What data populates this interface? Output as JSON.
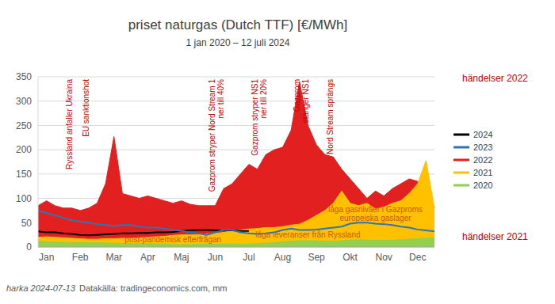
{
  "chart_data": {
    "type": "area",
    "title": "priset naturgas (Dutch TTF) [€/MWh]",
    "subtitle": "1 jan 2020 – 12 juli 2024",
    "categories": [
      null,
      "Jan",
      null,
      null,
      null,
      "Feb",
      null,
      null,
      null,
      "Mar",
      null,
      null,
      null,
      "Apr",
      null,
      null,
      null,
      "Maj",
      null,
      null,
      null,
      "Jun",
      null,
      null,
      null,
      "Jul",
      null,
      null,
      null,
      "Aug",
      null,
      null,
      null,
      "Sep",
      null,
      null,
      null,
      "Okt",
      null,
      null,
      null,
      "Nov",
      null,
      null,
      null,
      "Dec",
      null,
      null
    ],
    "series": [
      {
        "name": "2024",
        "color": "#000000",
        "type": "line",
        "values": [
          32,
          30,
          30,
          28,
          27,
          25,
          24,
          25,
          26,
          27,
          28,
          28,
          29,
          29,
          30,
          30,
          31,
          33,
          34,
          35,
          35,
          34,
          34,
          34,
          33,
          33,
          null,
          null,
          null,
          null,
          null,
          null,
          null,
          null,
          null,
          null,
          null,
          null,
          null,
          null,
          null,
          null,
          null,
          null,
          null,
          null,
          null,
          null
        ]
      },
      {
        "name": "2023",
        "color": "#2e75b6",
        "type": "line",
        "values": [
          75,
          70,
          65,
          60,
          55,
          52,
          50,
          47,
          45,
          43,
          45,
          45,
          42,
          40,
          40,
          38,
          35,
          33,
          30,
          28,
          25,
          30,
          35,
          35,
          30,
          28,
          27,
          28,
          30,
          35,
          38,
          35,
          35,
          36,
          38,
          40,
          42,
          48,
          50,
          50,
          48,
          47,
          45,
          42,
          40,
          36,
          34,
          32
        ]
      },
      {
        "name": "2022",
        "color": "#e32020",
        "type": "area",
        "values": [
          85,
          95,
          85,
          80,
          80,
          75,
          80,
          90,
          130,
          227,
          110,
          105,
          100,
          105,
          100,
          95,
          90,
          95,
          88,
          85,
          85,
          85,
          120,
          130,
          150,
          170,
          160,
          190,
          200,
          205,
          240,
          340,
          250,
          210,
          190,
          185,
          160,
          140,
          120,
          100,
          115,
          105,
          120,
          130,
          140,
          135,
          110,
          80
        ]
      },
      {
        "name": "2021",
        "color": "#ffc000",
        "type": "area",
        "values": [
          20,
          21,
          20,
          19,
          18,
          17,
          16,
          16,
          17,
          17,
          18,
          18,
          19,
          20,
          21,
          22,
          24,
          25,
          25,
          25,
          27,
          28,
          30,
          33,
          35,
          37,
          38,
          40,
          40,
          42,
          45,
          47,
          55,
          65,
          75,
          90,
          115,
          90,
          85,
          90,
          78,
          82,
          90,
          95,
          110,
          130,
          178,
          80
        ]
      },
      {
        "name": "2020",
        "color": "#92d050",
        "type": "area",
        "values": [
          12,
          11,
          10,
          10,
          9,
          9,
          9,
          9,
          8,
          8,
          7,
          7,
          7,
          7,
          6,
          6,
          5,
          5,
          5,
          6,
          6,
          6,
          6,
          6,
          6,
          6,
          7,
          8,
          9,
          11,
          12,
          13,
          13,
          13,
          12,
          12,
          13,
          14,
          15,
          14,
          14,
          14,
          14,
          15,
          16,
          17,
          18,
          19
        ]
      }
    ],
    "ylim": [
      0,
      350
    ],
    "yticks": [
      0,
      50,
      100,
      150,
      200,
      250,
      300,
      350
    ],
    "grid": true,
    "legend": "right",
    "events_2022": {
      "label": "händelser 2022",
      "color": "#c00000",
      "items": [
        {
          "lines": [
            "Ryssland anfaller Ukraina"
          ],
          "x": 4
        },
        {
          "lines": [
            "EU sanktionshot"
          ],
          "x": 6
        },
        {
          "lines": [
            "Gazprom stryper Nord Stream 1",
            "ner till 40%"
          ],
          "x": 21
        },
        {
          "lines": [
            "Gazprom stryper NS1",
            "ner till 20%"
          ],
          "x": 26
        },
        {
          "lines": [
            "Gazprom",
            "stänger NS1"
          ],
          "x": 31
        },
        {
          "lines": [
            "Nord Stream sprängs"
          ],
          "x": 35
        }
      ]
    },
    "events_2021": {
      "label": "händelser 2021",
      "color": "#c55a11",
      "items": [
        {
          "lines": [
            "post-pandemisk efterfrågan"
          ],
          "x": 16,
          "y": 15
        },
        {
          "lines": [
            "låga leveranser från Ryssland"
          ],
          "x": 32,
          "y": 24
        },
        {
          "lines": [
            "låga gasnivåer i Gazproms",
            "europeiska gaslager"
          ],
          "x": 40,
          "y": 76
        }
      ]
    }
  },
  "footer": {
    "author": "harka 2024-07-13",
    "source": "Datakälla: tradingeconomics.com, mm"
  }
}
